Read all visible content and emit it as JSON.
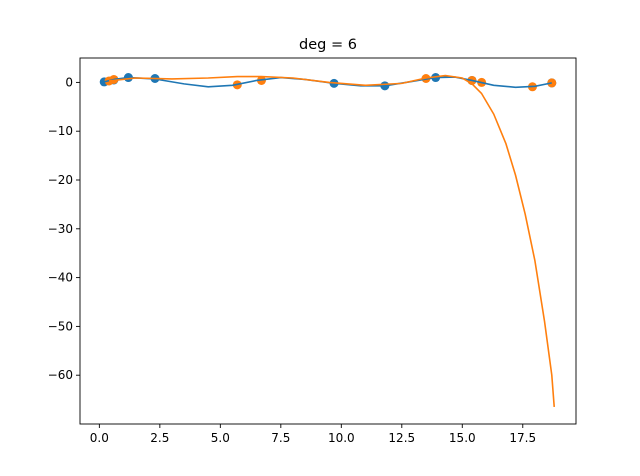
{
  "chart_data": {
    "type": "scatter",
    "title": "deg = 6",
    "xlabel": "",
    "ylabel": "",
    "xlim": [
      -0.8,
      19.7
    ],
    "ylim": [
      -70.0,
      5.0
    ],
    "xticks": [
      0.0,
      2.5,
      5.0,
      7.5,
      10.0,
      12.5,
      15.0,
      17.5
    ],
    "xtick_labels": [
      "0.0",
      "2.5",
      "5.0",
      "7.5",
      "10.0",
      "12.5",
      "15.0",
      "17.5"
    ],
    "yticks": [
      0,
      -10,
      -20,
      -30,
      -40,
      -50,
      -60
    ],
    "ytick_labels": [
      "0",
      "−10",
      "−20",
      "−30",
      "−40",
      "−50",
      "−60"
    ],
    "grid": false,
    "colors": {
      "series1": "#1f77b4",
      "series2": "#ff7f0e"
    },
    "series": [
      {
        "points": {
          "x": [
            0.2,
            0.6,
            1.2,
            2.3,
            9.7,
            11.8,
            13.9,
            15.4,
            18.7
          ],
          "y": [
            0.1,
            0.5,
            1.0,
            0.8,
            -0.2,
            -0.7,
            1.0,
            0.4,
            -0.1
          ]
        },
        "curve": {
          "x": [
            0.2,
            0.6,
            1.2,
            2.3,
            3.5,
            4.5,
            5.5,
            6.5,
            7.5,
            8.5,
            9.7,
            10.8,
            11.8,
            12.8,
            13.9,
            14.7,
            15.4,
            16.3,
            17.2,
            18.0,
            18.7
          ],
          "y": [
            0.1,
            0.6,
            1.0,
            0.7,
            -0.3,
            -0.9,
            -0.6,
            0.4,
            1.0,
            0.6,
            -0.2,
            -0.7,
            -0.7,
            0.1,
            1.0,
            1.1,
            0.4,
            -0.6,
            -1.0,
            -0.8,
            -0.1
          ]
        }
      },
      {
        "points": {
          "x": [
            0.4,
            0.6,
            5.7,
            6.7,
            13.5,
            15.4,
            15.8,
            17.9,
            18.7
          ],
          "y": [
            0.3,
            0.6,
            -0.5,
            0.4,
            0.8,
            0.4,
            0.0,
            -0.9,
            -0.1
          ]
        },
        "curve": {
          "x": [
            0.4,
            1.5,
            3.0,
            4.5,
            5.7,
            6.7,
            8.0,
            9.5,
            11.0,
            12.5,
            13.5,
            14.3,
            15.0,
            15.4,
            15.8,
            16.3,
            16.8,
            17.2,
            17.6,
            18.0,
            18.4,
            18.7,
            18.8
          ],
          "y": [
            0.3,
            0.9,
            0.7,
            0.9,
            1.2,
            1.2,
            0.9,
            0.0,
            -0.6,
            -0.2,
            0.9,
            1.4,
            0.9,
            -0.3,
            -2.3,
            -6.5,
            -12.5,
            -19.0,
            -27.0,
            -36.5,
            -49.0,
            -60.0,
            -66.5
          ]
        }
      }
    ]
  }
}
